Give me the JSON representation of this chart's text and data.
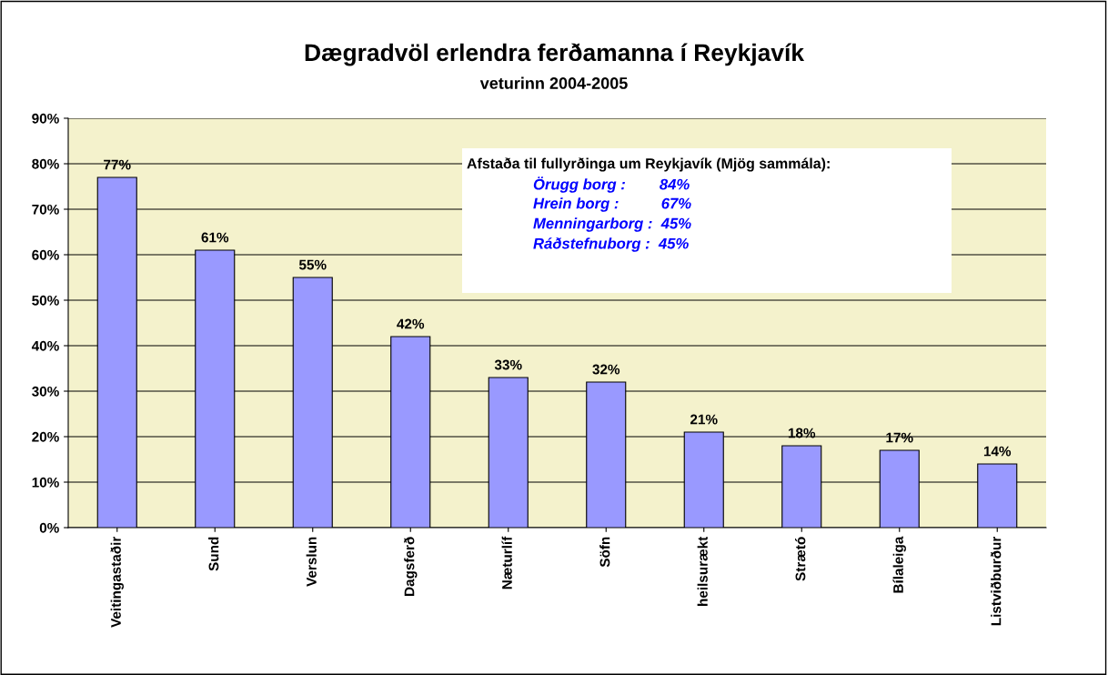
{
  "chart_data": {
    "type": "bar",
    "title": "Dægradvöl erlendra ferðamanna í Reykjavík",
    "subtitle": "veturinn 2004-2005",
    "categories": [
      "Veitingastaðir",
      "Sund",
      "Verslun",
      "Dagsferð",
      "Næturlíf",
      "Söfn",
      "heilsurækt",
      "Strætó",
      "Bílaleiga",
      "Listviðburður"
    ],
    "values": [
      77,
      61,
      55,
      42,
      33,
      32,
      21,
      18,
      17,
      14
    ],
    "value_labels": [
      "77%",
      "61%",
      "55%",
      "42%",
      "33%",
      "32%",
      "21%",
      "18%",
      "17%",
      "14%"
    ],
    "color": "#9999ff",
    "ylim": [
      0,
      90
    ],
    "yticks": [
      {
        "value": 0,
        "label": "0%"
      },
      {
        "value": 10,
        "label": "10%"
      },
      {
        "value": 20,
        "label": "20%"
      },
      {
        "value": 30,
        "label": "30%"
      },
      {
        "value": 40,
        "label": "40%"
      },
      {
        "value": 50,
        "label": "50%"
      },
      {
        "value": 60,
        "label": "60%"
      },
      {
        "value": 70,
        "label": "70%"
      },
      {
        "value": 80,
        "label": "80%"
      },
      {
        "value": 90,
        "label": "90%"
      }
    ],
    "grid": "y",
    "annotations": [
      "Afstaða til fullyrðinga um Reykjavík (Mjög sammála):",
      "Örugg borg :        84%",
      "Hrein borg :          67%",
      "Menningarborg :  45%",
      "Ráðstefnuborg :  45%"
    ]
  }
}
